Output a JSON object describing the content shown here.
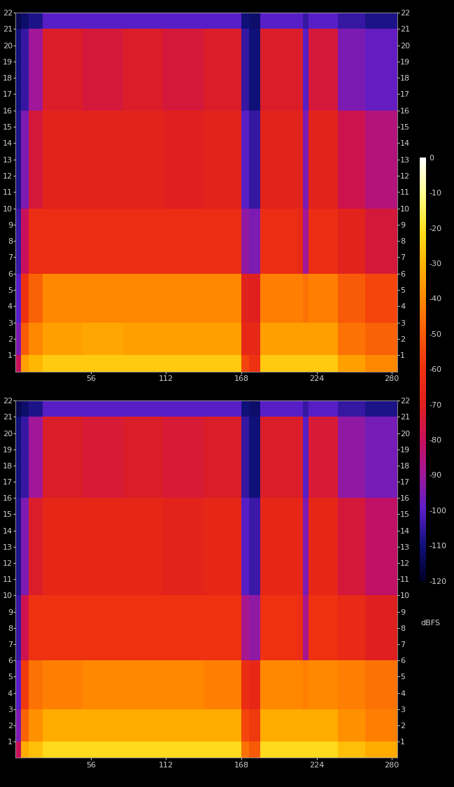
{
  "chart_data": [
    {
      "type": "heatmap",
      "x_edges": [
        0,
        4,
        10,
        20,
        50,
        80,
        110,
        140,
        168,
        174,
        182,
        210,
        214,
        218,
        240,
        260,
        284
      ],
      "y_edges": [
        0,
        1,
        3,
        6,
        10,
        16,
        21,
        22
      ],
      "cells": [
        [
          -80,
          -35,
          -30,
          -25,
          -25,
          -25,
          -25,
          -25,
          -55,
          -60,
          -25,
          -25,
          -25,
          -25,
          -35,
          -40
        ],
        [
          -95,
          -50,
          -40,
          -35,
          -33,
          -35,
          -35,
          -35,
          -65,
          -65,
          -35,
          -35,
          -35,
          -35,
          -45,
          -48
        ],
        [
          -100,
          -60,
          -48,
          -40,
          -40,
          -40,
          -40,
          -40,
          -68,
          -70,
          -42,
          -42,
          -45,
          -42,
          -50,
          -55
        ],
        [
          -105,
          -80,
          -62,
          -62,
          -62,
          -62,
          -62,
          -62,
          -92,
          -95,
          -62,
          -65,
          -90,
          -62,
          -68,
          -75
        ],
        [
          -108,
          -95,
          -75,
          -68,
          -68,
          -68,
          -70,
          -68,
          -100,
          -105,
          -68,
          -68,
          -95,
          -68,
          -78,
          -85
        ],
        [
          -110,
          -105,
          -90,
          -72,
          -75,
          -72,
          -75,
          -72,
          -105,
          -110,
          -72,
          -72,
          -100,
          -75,
          -95,
          -98
        ],
        [
          -115,
          -112,
          -108,
          -100,
          -100,
          -100,
          -100,
          -100,
          -110,
          -112,
          -100,
          -100,
          -105,
          -100,
          -105,
          -108
        ]
      ],
      "xlim": [
        0,
        284
      ],
      "ylim": [
        0,
        22
      ],
      "xticks": [
        56,
        112,
        168,
        224,
        280
      ],
      "yticks": [
        1,
        2,
        3,
        4,
        5,
        6,
        7,
        8,
        9,
        10,
        11,
        12,
        13,
        14,
        15,
        16,
        17,
        18,
        19,
        20,
        21,
        22
      ],
      "colorbar_range": [
        -120,
        0
      ],
      "colorbar_ticks": [
        0,
        -10,
        -20,
        -30,
        -40,
        -50,
        -60,
        -70,
        -80,
        -90,
        -100,
        -110,
        -120
      ],
      "colorbar_label": "dBFS"
    },
    {
      "type": "heatmap",
      "x_edges": [
        0,
        4,
        10,
        20,
        50,
        80,
        110,
        140,
        168,
        174,
        182,
        210,
        214,
        218,
        240,
        260,
        284
      ],
      "y_edges": [
        0,
        1,
        3,
        6,
        10,
        16,
        21,
        22
      ],
      "cells": [
        [
          -80,
          -32,
          -28,
          -22,
          -22,
          -22,
          -22,
          -22,
          -45,
          -50,
          -22,
          -22,
          -22,
          -22,
          -28,
          -32
        ],
        [
          -95,
          -48,
          -38,
          -32,
          -32,
          -32,
          -32,
          -32,
          -55,
          -58,
          -32,
          -32,
          -32,
          -32,
          -38,
          -42
        ],
        [
          -100,
          -58,
          -45,
          -42,
          -40,
          -40,
          -40,
          -42,
          -62,
          -65,
          -40,
          -40,
          -42,
          -40,
          -42,
          -45
        ],
        [
          -105,
          -78,
          -60,
          -60,
          -60,
          -60,
          -60,
          -60,
          -88,
          -92,
          -60,
          -62,
          -88,
          -60,
          -64,
          -70
        ],
        [
          -108,
          -95,
          -72,
          -66,
          -66,
          -66,
          -68,
          -66,
          -100,
          -104,
          -66,
          -66,
          -95,
          -66,
          -75,
          -82
        ],
        [
          -110,
          -105,
          -90,
          -72,
          -74,
          -72,
          -74,
          -72,
          -105,
          -110,
          -72,
          -72,
          -100,
          -74,
          -92,
          -96
        ],
        [
          -115,
          -112,
          -108,
          -100,
          -100,
          -100,
          -100,
          -100,
          -110,
          -112,
          -100,
          -100,
          -105,
          -100,
          -105,
          -108
        ]
      ],
      "xlim": [
        0,
        284
      ],
      "ylim": [
        0,
        22
      ],
      "xticks": [
        56,
        112,
        168,
        224,
        280
      ],
      "yticks": [
        1,
        2,
        3,
        4,
        5,
        6,
        7,
        8,
        9,
        10,
        11,
        12,
        13,
        14,
        15,
        16,
        17,
        18,
        19,
        20,
        21,
        22
      ]
    }
  ]
}
